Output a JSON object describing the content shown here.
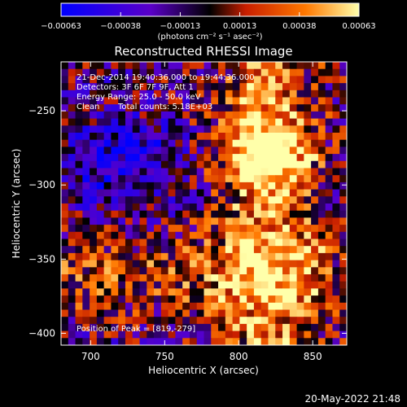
{
  "footer_timestamp": "20-May-2022 21:48",
  "chart_data": {
    "type": "heatmap",
    "title": "Reconstructed RHESSI Image",
    "xlabel": "Heliocentric X (arcsec)",
    "ylabel": "Heliocentric Y (arcsec)",
    "xlim": [
      680,
      873
    ],
    "ylim": [
      -408,
      -217
    ],
    "x_ticks": [
      {
        "value": 700,
        "label": "700"
      },
      {
        "value": 750,
        "label": "750"
      },
      {
        "value": 800,
        "label": "800"
      },
      {
        "value": 850,
        "label": "850"
      }
    ],
    "y_ticks": [
      {
        "value": -250,
        "label": "−250"
      },
      {
        "value": -300,
        "label": "−300"
      },
      {
        "value": -350,
        "label": "−350"
      },
      {
        "value": -400,
        "label": "−400"
      }
    ],
    "colorbar": {
      "range": [
        -0.00063,
        0.00063
      ],
      "tick_labels": [
        "−0.00063",
        "−0.00038",
        "−0.00013",
        "0.00013",
        "0.00038",
        "0.00063"
      ],
      "unit_label": "(photons cm⁻² s⁻¹ asec⁻²)",
      "colors": [
        "#0000ff",
        "#5a00c8",
        "#000000",
        "#c81e00",
        "#ff7800",
        "#ffffaa"
      ]
    },
    "annotations": {
      "time_range": "21-Dec-2014 19:40:36.000 to 19:44:36.000",
      "detectors": "Detectors: 3F 6F 7F 9F, Att 1",
      "energy_range": "Energy Range: 25.0 - 50.0 keV",
      "clean_label": "Clean",
      "total_counts": "Total counts: 5.18E+03",
      "peak_position": "Position of Peak = [819,-279]"
    },
    "peak": [
      819,
      -279
    ],
    "grid_size": [
      40,
      40
    ],
    "grid": "seeded-pseudorandom-noise"
  }
}
